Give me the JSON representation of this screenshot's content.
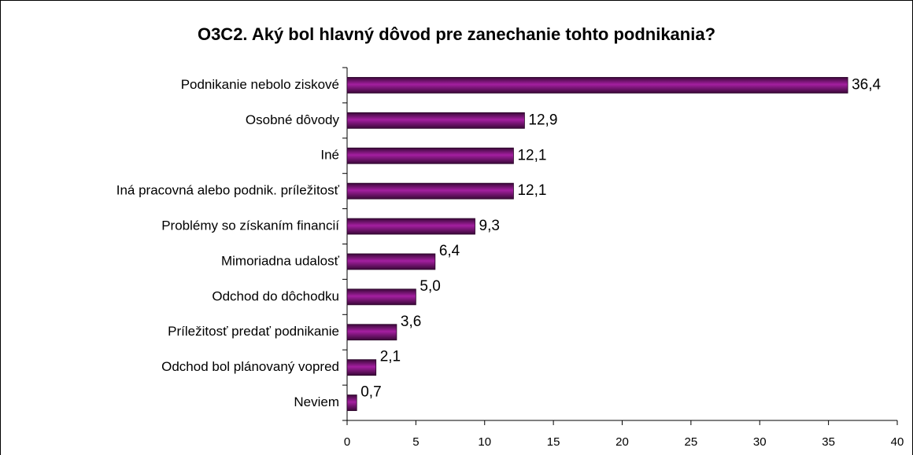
{
  "chart_data": {
    "type": "bar",
    "orientation": "horizontal",
    "title": "O3C2.  Aký bol hlavný dôvod pre zanechanie tohto podnikania?",
    "categories": [
      "Podnikanie nebolo ziskové",
      "Osobné dôvody",
      "Iné",
      "Iná pracovná alebo podnik. príležitosť",
      "Problémy so získaním financií",
      "Mimoriadna udalosť",
      "Odchod do dôchodku",
      "Príležitosť predať podnikanie",
      "Odchod bol plánovaný vopred",
      "Neviem"
    ],
    "values": [
      36.4,
      12.9,
      12.1,
      12.1,
      9.3,
      6.4,
      5.0,
      3.6,
      2.1,
      0.7
    ],
    "value_labels": [
      "36,4",
      "12,9",
      "12,1",
      "12,1",
      "9,3",
      "6,4",
      "5,0",
      "3,6",
      "2,1",
      "0,7"
    ],
    "color": "#8b1a8b",
    "xlim": [
      0,
      40
    ],
    "xticks": [
      0,
      5,
      10,
      15,
      20,
      25,
      30,
      35,
      40
    ]
  }
}
